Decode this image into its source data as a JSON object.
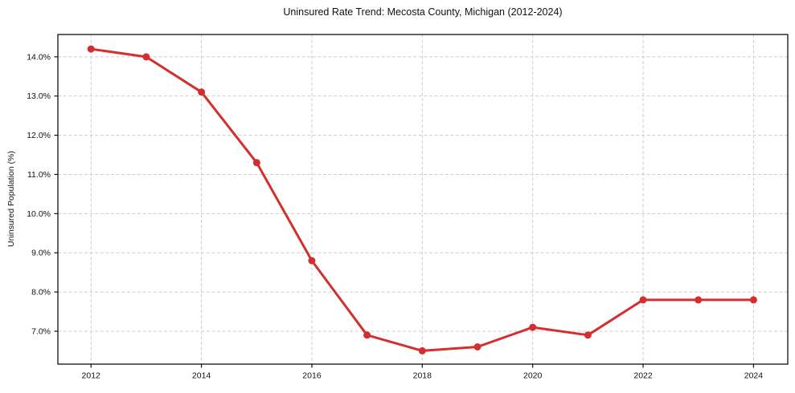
{
  "chart_data": {
    "type": "line",
    "title": "Uninsured Rate Trend: Mecosta County, Michigan (2012-2024)",
    "xlabel": "",
    "ylabel": "Uninsured Population (%)",
    "x": [
      2012,
      2013,
      2014,
      2015,
      2016,
      2017,
      2018,
      2019,
      2020,
      2021,
      2022,
      2023,
      2024
    ],
    "values": [
      14.2,
      14.0,
      13.1,
      11.3,
      8.8,
      6.9,
      6.5,
      6.6,
      7.1,
      6.9,
      7.8,
      7.8,
      7.8
    ],
    "xticks": {
      "values": [
        2012,
        2014,
        2016,
        2018,
        2020,
        2022,
        2024
      ],
      "labels": [
        "2012",
        "2014",
        "2016",
        "2018",
        "2020",
        "2022",
        "2024"
      ]
    },
    "yticks": {
      "values": [
        7,
        8,
        9,
        10,
        11,
        12,
        13,
        14
      ],
      "labels": [
        "7.0%",
        "8.0%",
        "9.0%",
        "10.0%",
        "11.0%",
        "12.0%",
        "13.0%",
        "14.0%"
      ]
    },
    "xlim": [
      2011.4,
      2024.62
    ],
    "ylim": [
      6.16,
      14.57
    ],
    "grid": true,
    "grid_style": "dashed",
    "legend": false,
    "line_color": "#d32f2f",
    "marker": "circle",
    "marker_radius": 4.5,
    "background": "#ffffff",
    "grid_color": "#cccccc",
    "text_color": "#111111"
  }
}
